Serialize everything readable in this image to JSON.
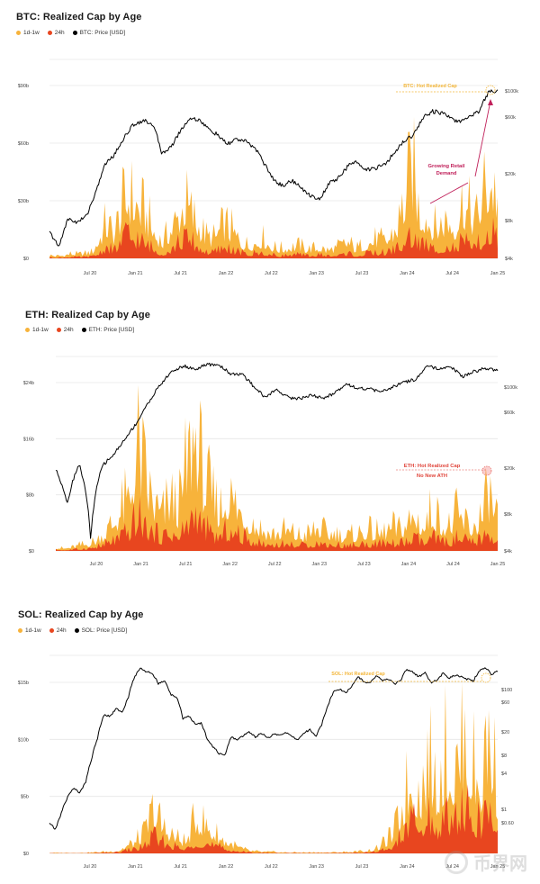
{
  "colors": {
    "orange": "#f7b33b",
    "red": "#e8461f",
    "black": "#000000",
    "anno_red": "#c0205a",
    "hot": "#f3b63a",
    "grid": "#e6e6e6"
  },
  "watermark": {
    "text": "币界网",
    "icon": "coin-logo-icon"
  },
  "chart_data": [
    {
      "id": "btc",
      "type": "area",
      "title": "BTC: Realized Cap by Age",
      "legend": [
        "1d-1w",
        "24h",
        "BTC: Price [USD]"
      ],
      "x_ticks": [
        "Jul 20",
        "Jan 21",
        "Jul 21",
        "Jan 22",
        "Jul 22",
        "Jan 23",
        "Jul 23",
        "Jan 24",
        "Jul 24",
        "Jan 25"
      ],
      "y_left_ticks": [
        "$0",
        "$30b",
        "$60b",
        "$90b"
      ],
      "y_left_range": [
        0,
        90
      ],
      "y_right_ticks": [
        "$4k",
        "$8k",
        "$20k",
        "$60k",
        "$100k"
      ],
      "series": [
        {
          "name": "1d-1w",
          "values": [
            2,
            1.5,
            1.8,
            3,
            2.5,
            3,
            4,
            12,
            22,
            15,
            28,
            40,
            35,
            30,
            22,
            14,
            10,
            18,
            25,
            35,
            28,
            20,
            14,
            12,
            18,
            20,
            15,
            10,
            8,
            10,
            12,
            8,
            6,
            6,
            7,
            8,
            6,
            6,
            7,
            5,
            6,
            8,
            10,
            6,
            8,
            10,
            12,
            10,
            14,
            22,
            38,
            55,
            30,
            28,
            18,
            22,
            25,
            20,
            35,
            28,
            24,
            42,
            50,
            40
          ]
        },
        {
          "name": "24h",
          "values": [
            0.5,
            0.4,
            0.5,
            0.8,
            0.7,
            0.8,
            1,
            3,
            6,
            4,
            9,
            14,
            11,
            9,
            7,
            4,
            3,
            5,
            8,
            11,
            9,
            6,
            4,
            3,
            5,
            6,
            4,
            3,
            2,
            3,
            3,
            2,
            1.5,
            1.5,
            2,
            2,
            1.5,
            1.5,
            2,
            1.5,
            1.5,
            2,
            3,
            1.5,
            2,
            3,
            3,
            3,
            4,
            6,
            9,
            12,
            8,
            7,
            5,
            6,
            7,
            5,
            9,
            7,
            6,
            11,
            14,
            10
          ]
        },
        {
          "name": "BTC: Price [USD]",
          "values": [
            9.2,
            7.1,
            11.5,
            10.8,
            12.2,
            18,
            29,
            34,
            45,
            56,
            60,
            57,
            35,
            38,
            50,
            62,
            61,
            52,
            47,
            40,
            44,
            42,
            38,
            29,
            22,
            20,
            22,
            19,
            17,
            16,
            21,
            23,
            28,
            30,
            26,
            27,
            29,
            35,
            43,
            47,
            63,
            70,
            68,
            62,
            58,
            65,
            70,
            96,
            100
          ]
        }
      ],
      "annotations": [
        "BTC: Hot Realized Cap",
        "Growing Retail Demand"
      ]
    },
    {
      "id": "eth",
      "type": "area",
      "title": "ETH: Realized Cap by Age",
      "legend": [
        "1d-1w",
        "24h",
        "ETH: Price [USD]"
      ],
      "x_ticks": [
        "Jul 20",
        "Jan 21",
        "Jul 21",
        "Jan 22",
        "Jul 22",
        "Jan 23",
        "Jul 23",
        "Jan 24",
        "Jul 24",
        "Jan 25"
      ],
      "y_left_ticks": [
        "$0",
        "$8b",
        "$16b",
        "$24b"
      ],
      "y_left_range": [
        0,
        24
      ],
      "y_right_ticks": [
        "$4k",
        "$8k",
        "$20k",
        "$60k",
        "$100k"
      ],
      "series": [
        {
          "name": "1d-1w",
          "values": [
            0.6,
            0.4,
            0.6,
            1,
            1.2,
            1.8,
            3,
            5,
            7,
            9,
            18,
            12,
            8,
            6,
            9,
            7,
            14,
            21,
            12,
            9,
            7,
            10,
            8,
            6,
            5,
            4,
            3,
            3,
            3.5,
            3,
            2.5,
            3,
            4,
            3,
            3,
            2.5,
            2.5,
            3,
            3.5,
            3,
            3,
            4,
            3.5,
            5,
            6,
            4,
            7,
            5,
            4,
            6,
            5,
            4,
            6,
            9,
            6
          ]
        },
        {
          "name": "24h",
          "values": [
            0.2,
            0.1,
            0.2,
            0.3,
            0.4,
            0.6,
            1,
            1.6,
            2,
            3,
            5,
            3.5,
            2.5,
            2,
            3,
            2,
            4,
            6,
            3.5,
            2.5,
            2,
            3,
            2.5,
            2,
            1.5,
            1.2,
            1,
            1,
            1,
            1,
            0.8,
            1,
            1.2,
            1,
            1,
            0.8,
            0.8,
            1,
            1,
            1,
            1,
            1.2,
            1,
            1.5,
            1.8,
            1.2,
            2,
            1.5,
            1.2,
            1.8,
            1.5,
            1.2,
            1.8,
            2.5,
            1.8
          ]
        },
        {
          "name": "ETH: Price [USD]",
          "values": [
            2.3,
            1.1,
            2.6,
            0.5,
            2.5,
            3.2,
            4.5,
            6.4,
            9.9,
            14.5,
            19.4,
            21.8,
            20.3,
            22.5,
            22.4,
            18.5,
            18.2,
            14.1,
            11,
            13.1,
            11,
            10.8,
            11.6,
            10.8,
            12.2,
            14.9,
            13.4,
            13.3,
            12.3,
            13.9,
            15.4,
            16.4,
            21.7,
            20.3,
            21.2,
            17.4,
            19.4,
            20.8,
            19.9
          ]
        }
      ],
      "annotations": [
        "ETH: Hot Realized Cap",
        "No New ATH"
      ]
    },
    {
      "id": "sol",
      "type": "area",
      "title": "SOL: Realized Cap by Age",
      "legend": [
        "1d-1w",
        "24h",
        "SOL: Price [USD]"
      ],
      "x_ticks": [
        "Jul 20",
        "Jan 21",
        "Jul 21",
        "Jan 22",
        "Jul 22",
        "Jan 23",
        "Jul 23",
        "Jan 24",
        "Jul 24",
        "Jan 25"
      ],
      "y_left_ticks": [
        "$0",
        "$5b",
        "$10b",
        "$15b"
      ],
      "y_left_range": [
        0,
        15
      ],
      "y_right_ticks": [
        "$0.60",
        "$1",
        "$4",
        "$8",
        "$20",
        "$60",
        "$100"
      ],
      "series": [
        {
          "name": "1d-1w",
          "values": [
            0.05,
            0.05,
            0.05,
            0.05,
            0.05,
            0.1,
            0.15,
            0.2,
            0.3,
            0.8,
            1.2,
            2,
            4.5,
            3,
            2.2,
            1.5,
            1.2,
            3.8,
            3,
            2.2,
            1.5,
            1,
            0.6,
            0.3,
            0.2,
            0.15,
            0.15,
            0.1,
            0.1,
            0.1,
            0.1,
            0.1,
            0.1,
            0.1,
            0.15,
            0.15,
            0.2,
            0.3,
            0.5,
            1.2,
            2.2,
            5,
            8,
            6,
            9,
            7,
            10,
            8,
            12,
            9,
            7,
            13,
            6
          ]
        },
        {
          "name": "24h",
          "values": [
            0.02,
            0.02,
            0.02,
            0.02,
            0.02,
            0.03,
            0.05,
            0.07,
            0.1,
            0.3,
            0.4,
            0.7,
            1.6,
            1,
            0.8,
            0.5,
            0.4,
            1.2,
            1,
            0.7,
            0.5,
            0.3,
            0.2,
            0.1,
            0.07,
            0.05,
            0.05,
            0.03,
            0.03,
            0.03,
            0.03,
            0.03,
            0.03,
            0.03,
            0.05,
            0.05,
            0.07,
            0.1,
            0.17,
            0.4,
            0.8,
            1.8,
            3,
            2.2,
            3.3,
            2.5,
            3.6,
            2.9,
            4.3,
            3.2,
            2.5,
            4.6,
            2.2
          ]
        },
        {
          "name": "SOL: Price [USD]",
          "values": [
            0.9,
            0.7,
            1.3,
            2.3,
            3.2,
            2.6,
            4,
            9,
            20,
            45,
            42,
            55,
            48,
            80,
            170,
            240,
            210,
            195,
            135,
            150,
            92,
            85,
            38,
            42,
            32,
            33,
            19,
            14,
            11,
            10,
            20,
            18,
            21,
            24,
            20,
            23,
            19,
            22,
            21,
            24,
            20,
            18,
            23,
            26,
            20,
            32,
            62,
            105,
            112,
            98,
            128,
            175,
            142,
            145,
            185,
            150,
            160,
            135,
            155,
            230,
            205,
            175,
            202,
            140,
            155,
            200,
            165,
            185,
            175,
            160,
            150,
            220,
            240,
            190,
            215
          ]
        }
      ],
      "annotations": [
        "SOL: Hot Realized Cap"
      ]
    }
  ]
}
